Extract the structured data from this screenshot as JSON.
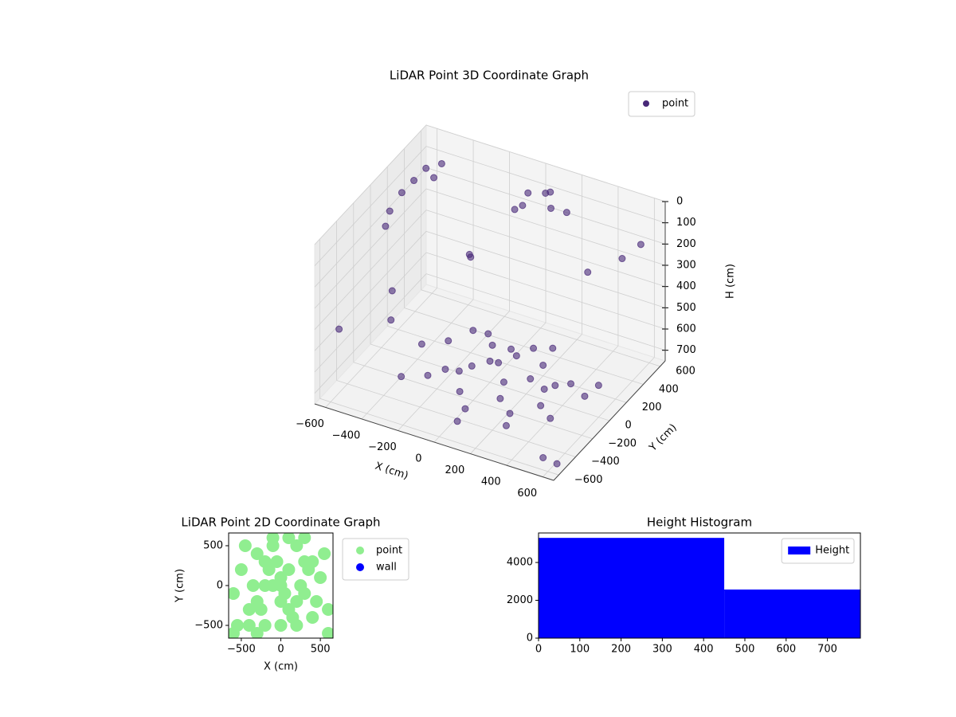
{
  "chart_data": [
    {
      "type": "scatter3d",
      "title": "LiDAR Point 3D Coordinate Graph",
      "xlabel": "X (cm)",
      "ylabel": "Y (cm)",
      "zlabel": "H (cm)",
      "xlim": [
        -660,
        660
      ],
      "ylim": [
        -660,
        660
      ],
      "zlim": [
        750,
        0
      ],
      "xticks": [
        {
          "value": -600,
          "label": "−600"
        },
        {
          "value": -400,
          "label": "−400"
        },
        {
          "value": -200,
          "label": "−200"
        },
        0,
        200,
        400,
        600
      ],
      "yticks": [
        {
          "value": -600,
          "label": "−600"
        },
        {
          "value": -400,
          "label": "−400"
        },
        {
          "value": -200,
          "label": "−200"
        },
        0,
        200,
        400,
        600
      ],
      "zticks": [
        0,
        100,
        200,
        300,
        400,
        500,
        600,
        700
      ],
      "grid": true,
      "legend": "upper right",
      "series": [
        {
          "name": "point",
          "color": "#482878",
          "x": [
            -200,
            -100,
            0,
            100,
            200,
            300,
            -300,
            400,
            -50,
            150,
            250,
            -250,
            0,
            350,
            450,
            500,
            -400,
            100,
            -150,
            200,
            50,
            300,
            -350,
            0,
            100,
            -100,
            -600,
            -580,
            -560,
            -540,
            -500,
            -600,
            -520,
            0,
            100,
            150,
            50,
            200,
            -50,
            -400,
            -300,
            200,
            400,
            600,
            -600,
            500,
            0,
            -200,
            300,
            600,
            -500,
            100,
            450,
            -100,
            650,
            550
          ],
          "y": [
            -100,
            0,
            100,
            -50,
            50,
            0,
            150,
            100,
            -250,
            -200,
            -300,
            -200,
            250,
            -150,
            -250,
            50,
            50,
            300,
            300,
            200,
            -400,
            -450,
            -300,
            0,
            100,
            -150,
            100,
            200,
            300,
            400,
            500,
            50,
            450,
            450,
            500,
            400,
            550,
            480,
            400,
            -300,
            400,
            -400,
            300,
            500,
            -500,
            -300,
            -200,
            200,
            100,
            0,
            -100,
            -600,
            600,
            600,
            -600,
            -550
          ],
          "z": [
            700,
            700,
            700,
            700,
            700,
            700,
            700,
            690,
            700,
            700,
            700,
            700,
            700,
            700,
            690,
            700,
            700,
            690,
            690,
            700,
            690,
            680,
            690,
            650,
            640,
            660,
            150,
            100,
            80,
            60,
            70,
            200,
            120,
            50,
            40,
            60,
            80,
            100,
            120,
            300,
            400,
            350,
            250,
            150,
            450,
            500,
            420,
            300,
            550,
            600,
            550,
            650,
            300,
            200,
            700,
            720
          ]
        }
      ]
    },
    {
      "type": "scatter",
      "title": "LiDAR Point 2D Coordinate Graph",
      "xlabel": "X (cm)",
      "ylabel": "Y (cm)",
      "xlim": [
        -660,
        660
      ],
      "ylim": [
        -660,
        660
      ],
      "xticks": [
        {
          "value": -500,
          "label": "−500"
        },
        0,
        500
      ],
      "yticks": [
        {
          "value": -500,
          "label": "−500"
        },
        0,
        500
      ],
      "legend": "upper left outside",
      "series": [
        {
          "name": "point",
          "color": "#90ee90",
          "x": [
            -600,
            -500,
            -400,
            -300,
            -200,
            -100,
            0,
            100,
            200,
            300,
            400,
            500,
            600,
            -550,
            -450,
            -350,
            -250,
            -150,
            -50,
            50,
            150,
            250,
            350,
            450,
            550,
            -300,
            -200,
            -100,
            0,
            100,
            200,
            300,
            -200,
            0,
            200,
            -400,
            400,
            0,
            -100,
            100,
            -600,
            600,
            300,
            -300
          ],
          "y": [
            -100,
            200,
            -300,
            400,
            0,
            500,
            -500,
            600,
            -200,
            300,
            -400,
            100,
            -600,
            -500,
            500,
            0,
            -300,
            200,
            300,
            -100,
            -400,
            0,
            200,
            -200,
            400,
            -200,
            -500,
            0,
            100,
            -300,
            500,
            -100,
            300,
            -200,
            -500,
            -500,
            300,
            0,
            600,
            200,
            -600,
            -300,
            600,
            -600
          ]
        },
        {
          "name": "wall",
          "color": "#0000ff",
          "x": [],
          "y": []
        }
      ]
    },
    {
      "type": "histogram",
      "title": "Height Histogram",
      "bins": [
        0,
        450,
        780
      ],
      "counts": [
        5300,
        2570
      ],
      "color": "#0000ff",
      "name": "Height",
      "xlim": [
        0,
        780
      ],
      "ylim": [
        0,
        5560
      ],
      "xticks": [
        0,
        100,
        200,
        300,
        400,
        500,
        600,
        700
      ],
      "yticks": [
        0,
        2000,
        4000
      ],
      "legend": "upper right"
    }
  ]
}
